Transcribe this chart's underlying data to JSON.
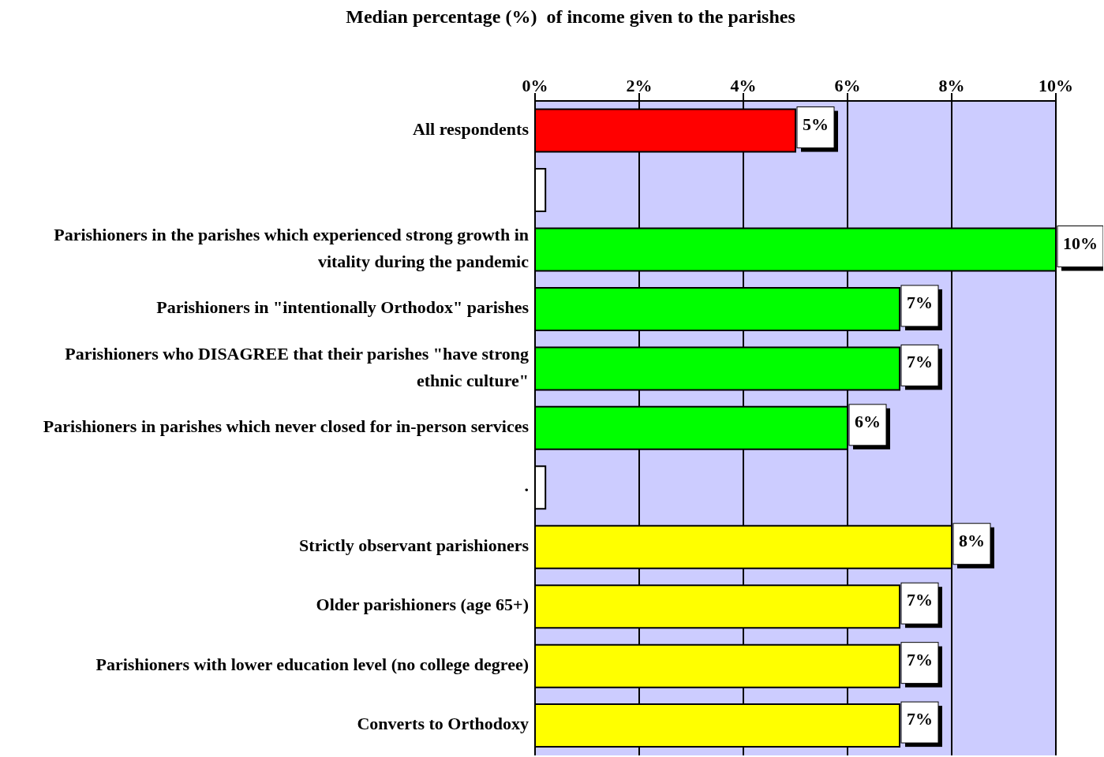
{
  "chart_data": {
    "type": "bar",
    "orientation": "horizontal",
    "title": "Median percentage (%)  of income given to the parishes",
    "categories": [
      "All respondents",
      null,
      "Parishioners in the parishes which experienced strong growth in vitality during the pandemic",
      "Parishioners in \"intentionally Orthodox\" parishes",
      "Parishioners who DISAGREE that their parishes \"have strong ethnic culture\"",
      "Parishioners in parishes which never closed for in-person services",
      ".",
      "Strictly observant parishioners",
      "Older parishioners (age 65+)",
      "Parishioners with lower education level (no college degree)",
      "Converts to Orthodoxy"
    ],
    "values": [
      5,
      0.2,
      10,
      7,
      7,
      6,
      0.2,
      8,
      7,
      7,
      7
    ],
    "colors": [
      "#ff0000",
      "#ffffff",
      "#00ff00",
      "#00ff00",
      "#00ff00",
      "#00ff00",
      "#ffffff",
      "#ffff00",
      "#ffff00",
      "#ffff00",
      "#ffff00"
    ],
    "value_labels": [
      "5%",
      null,
      "10%",
      "7%",
      "7%",
      "6%",
      null,
      "8%",
      "7%",
      "7%",
      "7%"
    ],
    "xlim": [
      0,
      10
    ],
    "xticks": [
      {
        "value": 0,
        "label": "0%"
      },
      {
        "value": 2,
        "label": "2%"
      },
      {
        "value": 4,
        "label": "4%"
      },
      {
        "value": 6,
        "label": "6%"
      },
      {
        "value": 8,
        "label": "8%"
      },
      {
        "value": 10,
        "label": "10%"
      }
    ],
    "grid": "x"
  }
}
